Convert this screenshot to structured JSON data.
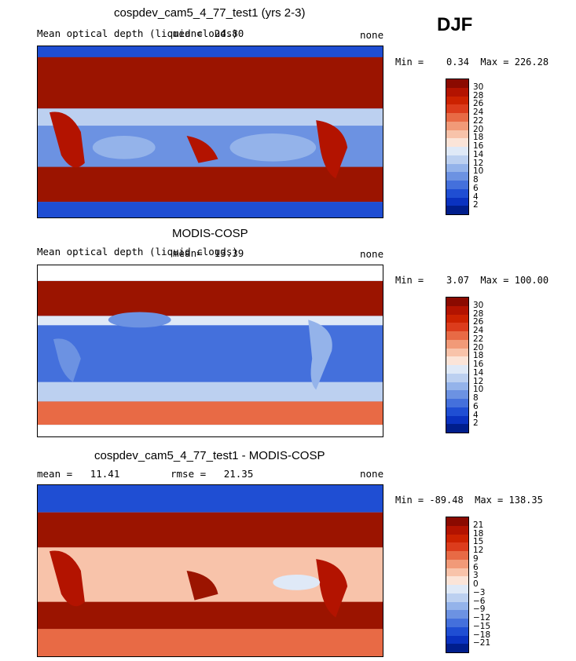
{
  "season": "DJF",
  "panels": [
    {
      "title": "cospdev_cam5_4_77_test1 (yrs 2-3)",
      "subtitle_left": "Mean optical depth (liquid clouds)",
      "stat_left": "mean=  24.80",
      "subtitle_right": "none",
      "minmax": "Min =    0.34  Max = 226.28",
      "colorbar_labels": [
        "30",
        "28",
        "26",
        "24",
        "22",
        "20",
        "18",
        "16",
        "14",
        "12",
        "10",
        "8",
        "6",
        "4",
        "2"
      ],
      "colors": [
        "#8b0a00",
        "#b31300",
        "#cc2200",
        "#dc3c1c",
        "#e86a45",
        "#f19a78",
        "#f8c3aa",
        "#fbe4d8",
        "#dfe9f7",
        "#bcd0f0",
        "#94b3ea",
        "#6c92e2",
        "#4470dc",
        "#1f4ed3",
        "#0a32c0",
        "#001e8c"
      ]
    },
    {
      "title": "MODIS-COSP",
      "subtitle_left": "Mean optical depth (liquid clouds)",
      "stat_left": "mean=  13.39",
      "subtitle_right": "none",
      "minmax": "Min =    3.07  Max = 100.00",
      "colorbar_labels": [
        "30",
        "28",
        "26",
        "24",
        "22",
        "20",
        "18",
        "16",
        "14",
        "12",
        "10",
        "8",
        "6",
        "4",
        "2"
      ],
      "colors": [
        "#8b0a00",
        "#b31300",
        "#cc2200",
        "#dc3c1c",
        "#e86a45",
        "#f19a78",
        "#f8c3aa",
        "#fbe4d8",
        "#dfe9f7",
        "#bcd0f0",
        "#94b3ea",
        "#6c92e2",
        "#4470dc",
        "#1f4ed3",
        "#0a32c0",
        "#001e8c"
      ]
    },
    {
      "title": "cospdev_cam5_4_77_test1 - MODIS-COSP",
      "subtitle_left": "mean =   11.41",
      "stat_left": "rmse =   21.35",
      "subtitle_right": "none",
      "minmax": "Min = -89.48  Max = 138.35",
      "colorbar_labels": [
        "21",
        "18",
        "15",
        "12",
        "9",
        "6",
        "3",
        "0",
        "−3",
        "−6",
        "−9",
        "−12",
        "−15",
        "−18",
        "−21"
      ],
      "colors": [
        "#8b0a00",
        "#b31300",
        "#cc2200",
        "#dc3c1c",
        "#e86a45",
        "#f19a78",
        "#f8c3aa",
        "#fbe4d8",
        "#dfe9f7",
        "#bcd0f0",
        "#94b3ea",
        "#6c92e2",
        "#4470dc",
        "#1f4ed3",
        "#0a32c0",
        "#001e8c"
      ]
    }
  ]
}
